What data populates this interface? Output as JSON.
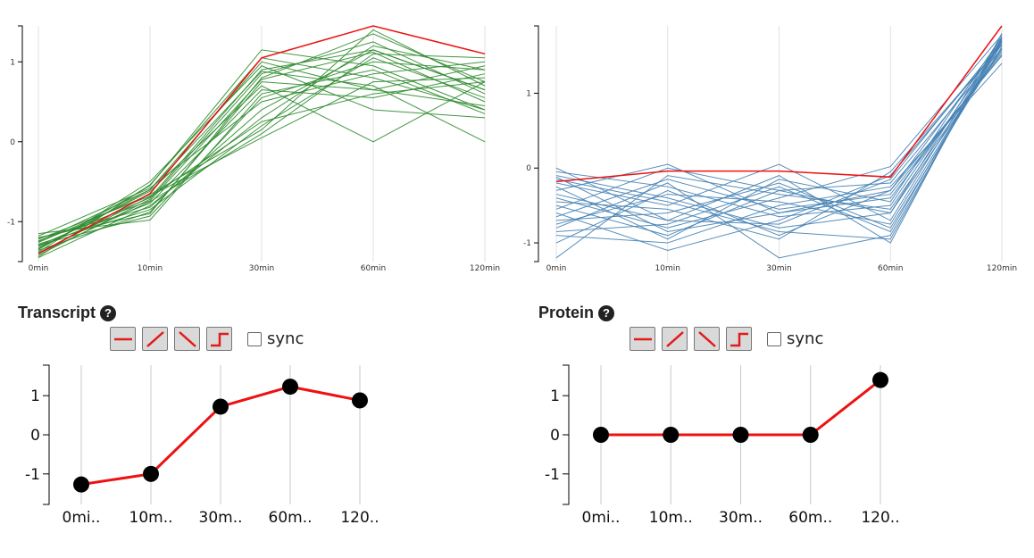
{
  "chart_data": [
    {
      "type": "line",
      "x": [
        "0min",
        "10min",
        "30min",
        "60min",
        "120min"
      ],
      "ylim": [
        -1.5,
        1.45
      ],
      "yticks": [
        -1,
        0,
        1
      ],
      "grid": "vertical",
      "series_color": "#2e8b2e",
      "highlight_color": "#ee1111",
      "highlight": {
        "values": [
          -1.4,
          -0.65,
          1.05,
          1.45,
          1.1
        ]
      },
      "series": [
        {
          "values": [
            -1.35,
            -0.55,
            1.15,
            0.95,
            0.4
          ]
        },
        {
          "values": [
            -1.2,
            -0.9,
            0.8,
            1.35,
            0.75
          ]
        },
        {
          "values": [
            -1.3,
            -0.7,
            0.9,
            1.15,
            0.65
          ]
        },
        {
          "values": [
            -1.45,
            -0.8,
            0.3,
            1.2,
            0.9
          ]
        },
        {
          "values": [
            -1.25,
            -0.6,
            1.0,
            0.65,
            0.95
          ]
        },
        {
          "values": [
            -1.4,
            -0.75,
            0.1,
            1.1,
            1.05
          ]
        },
        {
          "values": [
            -1.15,
            -0.98,
            0.6,
            0.9,
            0.35
          ]
        },
        {
          "values": [
            -1.33,
            -0.62,
            0.7,
            0.0,
            0.75
          ]
        },
        {
          "values": [
            -1.28,
            -0.85,
            0.2,
            1.05,
            0.55
          ]
        },
        {
          "values": [
            -1.38,
            -0.5,
            0.95,
            0.4,
            0.3
          ]
        },
        {
          "values": [
            -1.22,
            -0.68,
            0.05,
            0.75,
            0.8
          ]
        },
        {
          "values": [
            -1.42,
            -0.72,
            0.85,
            1.25,
            0.6
          ]
        },
        {
          "values": [
            -1.18,
            -0.58,
            0.5,
            0.85,
            1.0
          ]
        },
        {
          "values": [
            -1.36,
            -0.88,
            0.75,
            0.65,
            0.45
          ]
        },
        {
          "values": [
            -1.26,
            -0.66,
            0.15,
            1.4,
            0.7
          ]
        },
        {
          "values": [
            -1.31,
            -0.77,
            0.65,
            0.55,
            0.85
          ]
        },
        {
          "values": [
            -1.44,
            -0.54,
            1.05,
            0.8,
            0.4
          ]
        },
        {
          "values": [
            -1.21,
            -0.82,
            0.4,
            1.15,
            0.65
          ]
        },
        {
          "values": [
            -1.34,
            -0.6,
            0.88,
            0.7,
            0.0
          ]
        },
        {
          "values": [
            -1.29,
            -0.93,
            0.55,
            1.0,
            0.9
          ]
        },
        {
          "values": [
            -1.39,
            -0.69,
            0.25,
            0.6,
            0.75
          ]
        },
        {
          "values": [
            -1.24,
            -0.74,
            0.78,
            1.12,
            0.5
          ]
        }
      ]
    },
    {
      "type": "line",
      "x": [
        "0min",
        "10min",
        "30min",
        "60min",
        "120min"
      ],
      "ylim": [
        -1.25,
        1.9
      ],
      "yticks": [
        -1,
        0,
        1
      ],
      "grid": "vertical",
      "series_color": "#4682b4",
      "highlight_color": "#ee1111",
      "highlight": {
        "values": [
          -0.18,
          -0.04,
          -0.04,
          -0.12,
          1.9
        ]
      },
      "series": [
        {
          "values": [
            -0.1,
            -0.4,
            -0.8,
            -0.6,
            1.75
          ]
        },
        {
          "values": [
            -0.5,
            -0.9,
            -0.3,
            -0.2,
            1.6
          ]
        },
        {
          "values": [
            -0.8,
            -0.2,
            -1.2,
            -0.9,
            1.7
          ]
        },
        {
          "values": [
            -0.3,
            0.05,
            -0.6,
            -0.4,
            1.55
          ]
        },
        {
          "values": [
            0.0,
            -0.7,
            -0.1,
            -1.0,
            1.8
          ]
        },
        {
          "values": [
            -0.6,
            -1.1,
            -0.7,
            -0.1,
            1.65
          ]
        },
        {
          "values": [
            -0.2,
            -0.5,
            0.05,
            -0.7,
            1.72
          ]
        },
        {
          "values": [
            -1.0,
            -0.3,
            -0.9,
            -0.3,
            1.5
          ]
        },
        {
          "values": [
            -0.4,
            -0.8,
            -0.4,
            0.02,
            1.78
          ]
        },
        {
          "values": [
            -0.7,
            -0.6,
            -0.2,
            -0.8,
            1.62
          ]
        },
        {
          "values": [
            -0.05,
            -0.25,
            -0.65,
            -0.5,
            1.68
          ]
        },
        {
          "values": [
            -0.9,
            -1.0,
            -0.5,
            -0.25,
            1.4
          ]
        },
        {
          "values": [
            -0.15,
            -0.45,
            -0.85,
            -0.95,
            1.74
          ]
        },
        {
          "values": [
            -0.55,
            0.0,
            -0.3,
            -0.6,
            1.58
          ]
        },
        {
          "values": [
            -0.35,
            -0.7,
            -0.75,
            -0.15,
            1.7
          ]
        },
        {
          "values": [
            -0.75,
            -0.35,
            -0.45,
            -0.75,
            1.66
          ]
        },
        {
          "values": [
            -0.25,
            -0.95,
            -0.15,
            -0.45,
            1.76
          ]
        },
        {
          "values": [
            -0.65,
            -0.15,
            -0.55,
            -0.35,
            1.52
          ]
        },
        {
          "values": [
            -0.45,
            -0.55,
            -0.95,
            -0.05,
            1.64
          ]
        },
        {
          "values": [
            -0.85,
            -0.75,
            -0.25,
            -0.85,
            1.72
          ]
        },
        {
          "values": [
            -1.2,
            -0.1,
            -0.35,
            -0.55,
            1.6
          ]
        },
        {
          "values": [
            -0.12,
            -0.85,
            -0.6,
            -0.3,
            1.69
          ]
        }
      ]
    },
    {
      "type": "line",
      "title": "Transcript",
      "x": [
        "0mi..",
        "10m..",
        "30m..",
        "60m..",
        "120.."
      ],
      "values": [
        -1.27,
        -1.0,
        0.72,
        1.23,
        0.88
      ],
      "ylim": [
        -1.78,
        1.78
      ],
      "yticks": [
        -1,
        0,
        1
      ],
      "grid": "vertical",
      "line_color": "#ee1111",
      "point_color": "#000000"
    },
    {
      "type": "line",
      "title": "Protein",
      "x": [
        "0mi..",
        "10m..",
        "30m..",
        "60m..",
        "120.."
      ],
      "values": [
        0.0,
        0.0,
        0.0,
        0.0,
        1.4
      ],
      "ylim": [
        -1.78,
        1.78
      ],
      "yticks": [
        -1,
        0,
        1
      ],
      "grid": "vertical",
      "line_color": "#ee1111",
      "point_color": "#000000"
    }
  ],
  "panels": {
    "transcript": {
      "title": "Transcript",
      "help": "?",
      "sync_label": "sync"
    },
    "protein": {
      "title": "Protein",
      "help": "?",
      "sync_label": "sync"
    }
  },
  "icons": {
    "shape_buttons": [
      "flat-line-icon",
      "rising-line-icon",
      "falling-line-icon",
      "step-line-icon"
    ],
    "help": "question-circle-icon"
  }
}
